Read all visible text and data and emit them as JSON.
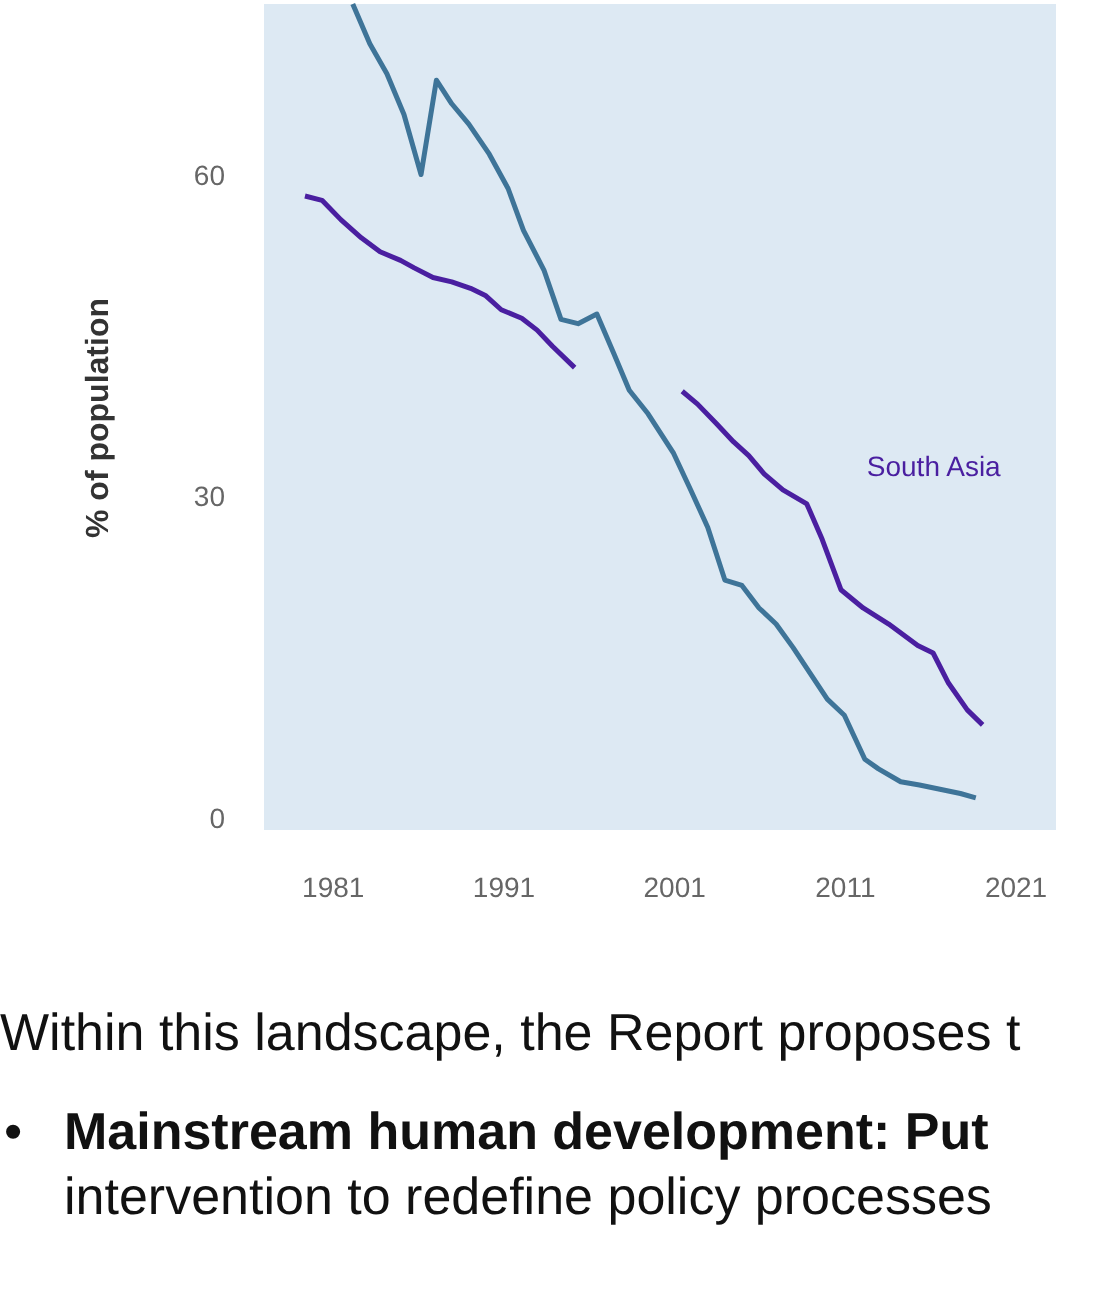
{
  "chart_data": {
    "type": "line",
    "ylabel": "% of population",
    "xlim": [
      1977,
      2023.4
    ],
    "xticks": [
      1981,
      1991,
      2001,
      2011,
      2021
    ],
    "ylim": [
      -1,
      76
    ],
    "yticks": [
      0,
      30,
      60
    ],
    "marker": "none",
    "line_style": "solid",
    "series": [
      {
        "color": "#3e7498",
        "x": [
          1982.2,
          1983.2,
          1984.2,
          1985.2,
          1986.2,
          1987.1,
          1988,
          1989,
          1990.2,
          1991.3,
          1992.2,
          1993.4,
          1994.4,
          1995.4,
          1996.5,
          1997.5,
          1998.4,
          1999.5,
          2001,
          2002,
          2003,
          2004,
          2005,
          2006,
          2007,
          2008,
          2009,
          2010,
          2011,
          2012.2,
          2013,
          2014.3,
          2015.4,
          2016.6,
          2017.8,
          2018.7
        ],
        "values": [
          76,
          72.3,
          69.5,
          65.7,
          60.1,
          68.9,
          66.7,
          64.8,
          62,
          58.8,
          54.9,
          51.2,
          46.6,
          46.2,
          47.1,
          43.4,
          40,
          37.8,
          34.1,
          30.7,
          27.2,
          22.3,
          21.8,
          19.7,
          18.2,
          16,
          13.6,
          11.2,
          9.7,
          5.6,
          4.7,
          3.5,
          3.2,
          2.8,
          2.4,
          2.0
        ]
      },
      {
        "name": "South Asia",
        "color": "#4a1fa0",
        "x": [
          1979.4,
          1980.4,
          1981.5,
          1982.7,
          1983.8,
          1985,
          1985.8,
          1986.9,
          1988,
          1989.1,
          1990,
          1990.9,
          1992.1,
          1993,
          1993.9,
          1995.2,
          1998,
          2001.5,
          2002.4,
          2003.5,
          2004.5,
          2005.4,
          2006.3,
          2007.4,
          2008.8,
          2009.7,
          2010.8,
          2012.1,
          2013.6,
          2015.3,
          2016.2,
          2017.1,
          2018.2,
          2019.1
        ],
        "values": [
          58.1,
          57.7,
          55.9,
          54.2,
          52.9,
          52.1,
          51.4,
          50.5,
          50.1,
          49.5,
          48.8,
          47.5,
          46.7,
          45.6,
          44.1,
          42.1,
          null,
          39.9,
          38.7,
          36.9,
          35.2,
          33.9,
          32.2,
          30.7,
          29.4,
          26.1,
          21.4,
          19.7,
          18.2,
          16.2,
          15.5,
          12.7,
          10.2,
          8.8
        ]
      }
    ],
    "annotations": [
      "Within this landscape, the Report proposes t",
      "•",
      "Mainstream human development: Put",
      "intervention to redefine policy processes"
    ]
  }
}
